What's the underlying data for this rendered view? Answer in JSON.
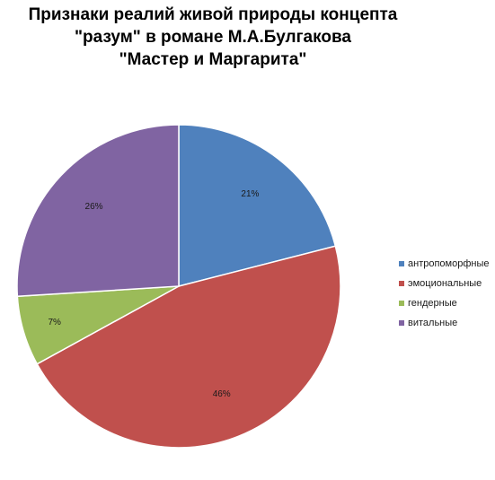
{
  "chart_data": {
    "type": "pie",
    "title_lines": [
      "Признаки реалий живой природы концепта",
      "\"разум\" в романе М.А.Булгакова",
      "\"Мастер и Маргарита\""
    ],
    "categories": [
      "антропоморфные",
      "эмоциональные",
      "гендерные",
      "витальные"
    ],
    "values": [
      21,
      46,
      7,
      26
    ],
    "data_labels": [
      "21%",
      "46%",
      "7%",
      "26%"
    ],
    "colors": [
      "#4F81BD",
      "#C0504D",
      "#9BBB59",
      "#8064A2"
    ],
    "start_angle": "12 o'clock",
    "direction": "clockwise",
    "legend_position": "right"
  }
}
